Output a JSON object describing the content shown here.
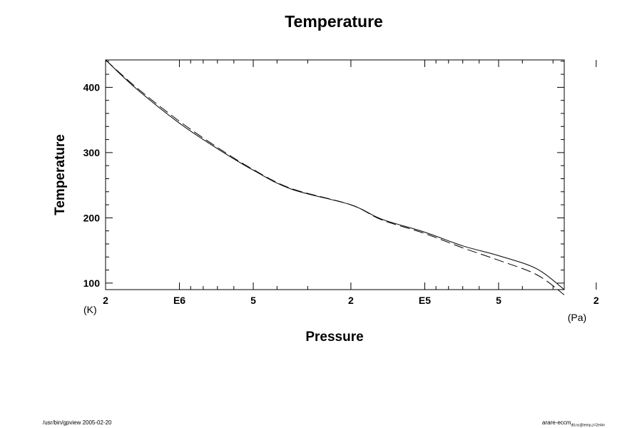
{
  "chart_data": {
    "type": "line",
    "title": "Temperature",
    "xlabel": "Pressure",
    "ylabel": "Temperature",
    "x_unit": "(Pa)",
    "y_unit": "(K)",
    "x_scale": "log",
    "x_reversed": true,
    "xlim": [
      2000000,
      27000
    ],
    "ylim": [
      90,
      442
    ],
    "grid": false,
    "x_tick_labels": [
      {
        "value": 2000000,
        "label": "2"
      },
      {
        "value": 1000000,
        "label": "E6"
      },
      {
        "value": 500000,
        "label": "5"
      },
      {
        "value": 200000,
        "label": "2"
      },
      {
        "value": 100000,
        "label": "E5"
      },
      {
        "value": 50000,
        "label": "5"
      },
      {
        "value": 20000,
        "label": "2"
      }
    ],
    "x_minor_ticks": [
      900000,
      800000,
      700000,
      600000,
      400000,
      300000,
      90000,
      80000,
      70000,
      60000,
      40000,
      30000
    ],
    "y_major_ticks": [
      100,
      200,
      300,
      400
    ],
    "y_minor_step": 20,
    "series": [
      {
        "style": "solid",
        "x": [
          2000000,
          1500000,
          1000000,
          700000,
          500000,
          350000,
          200000,
          150000,
          100000,
          70000,
          50000,
          35000,
          27000
        ],
        "y": [
          442,
          398,
          345,
          306,
          273,
          244,
          220,
          198,
          178,
          157,
          142,
          122,
          90
        ]
      },
      {
        "style": "dashed",
        "x": [
          2000000,
          1500000,
          1000000,
          700000,
          500000,
          350000,
          200000,
          150000,
          100000,
          70000,
          50000,
          35000,
          27000
        ],
        "y": [
          442,
          400,
          348,
          308,
          274,
          245,
          220,
          197,
          176,
          154,
          135,
          113,
          82
        ]
      }
    ]
  },
  "footer": {
    "left": "/usr/bin/gpview 2005-02-20",
    "right_main": "arare-eccm",
    "right_sub": "dtl.nc@temp,z=2e4m"
  }
}
